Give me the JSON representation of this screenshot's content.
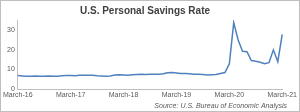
{
  "chart_data": {
    "type": "line",
    "title": "U.S. Personal Savings Rate",
    "annotations": [
      "Source: U.S. Bureau of Economic Analysis"
    ],
    "categories": [
      "March-16",
      null,
      null,
      null,
      null,
      null,
      null,
      null,
      null,
      null,
      null,
      null,
      "March-17",
      null,
      null,
      null,
      null,
      null,
      null,
      null,
      null,
      null,
      null,
      null,
      "March-18",
      null,
      null,
      null,
      null,
      null,
      null,
      null,
      null,
      null,
      null,
      null,
      "March-19",
      null,
      null,
      null,
      null,
      null,
      null,
      null,
      null,
      null,
      null,
      null,
      "March-20",
      null,
      null,
      null,
      null,
      null,
      null,
      null,
      null,
      null,
      null,
      null,
      "March-21"
    ],
    "values": [
      6.9,
      6.7,
      6.5,
      6.6,
      6.7,
      6.6,
      6.6,
      6.7,
      6.5,
      6.6,
      6.8,
      6.9,
      6.9,
      6.8,
      7.0,
      7.1,
      7.0,
      7.0,
      6.8,
      6.7,
      6.6,
      6.7,
      7.2,
      7.3,
      7.2,
      7.1,
      7.3,
      7.4,
      7.5,
      7.4,
      7.6,
      7.5,
      7.6,
      7.8,
      8.3,
      8.5,
      8.2,
      7.9,
      8.0,
      7.8,
      7.6,
      7.5,
      7.4,
      7.2,
      7.3,
      7.4,
      7.9,
      8.4,
      12.8,
      33.7,
      24.9,
      19.2,
      19.0,
      14.5,
      14.1,
      13.6,
      12.9,
      13.4,
      19.9,
      13.9,
      27.7
    ],
    "color": "#4f81bd",
    "ylim": [
      0,
      35
    ],
    "yticks": [
      0,
      10,
      20,
      30
    ],
    "grid": false
  }
}
